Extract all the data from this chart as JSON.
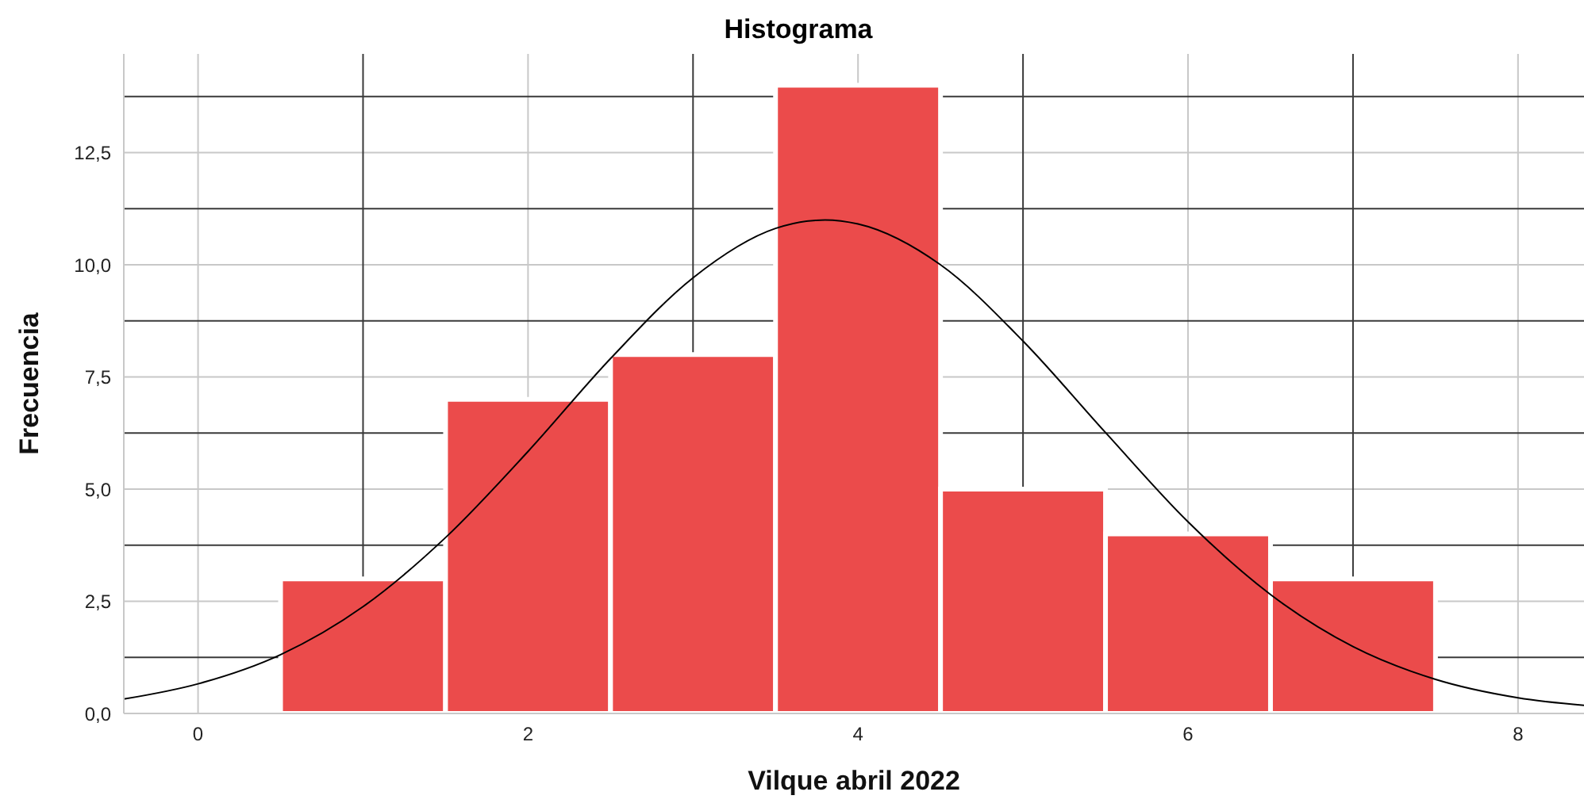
{
  "chart_data": {
    "type": "histogram",
    "title": "Histograma",
    "xlabel": "Vilque abril 2022",
    "ylabel": "Frecuencia",
    "xlim": [
      -0.45,
      8.4
    ],
    "ylim": [
      0,
      14.7
    ],
    "xticks": [
      0,
      {
        "value": 1,
        "label": null
      },
      2,
      {
        "value": 3,
        "label": null
      },
      4,
      {
        "value": 5,
        "label": null
      },
      6,
      {
        "value": 7,
        "label": null
      },
      8
    ],
    "yticks": [
      {
        "value": 0,
        "label": "0,0"
      },
      {
        "value": 1.25,
        "label": null
      },
      {
        "value": 2.5,
        "label": "2,5"
      },
      {
        "value": 3.75,
        "label": null
      },
      {
        "value": 5,
        "label": "5,0"
      },
      {
        "value": 6.25,
        "label": null
      },
      {
        "value": 7.5,
        "label": "7,5"
      },
      {
        "value": 8.75,
        "label": null
      },
      {
        "value": 10,
        "label": "10,0"
      },
      {
        "value": 11.25,
        "label": null
      },
      {
        "value": 12.5,
        "label": "12,5"
      },
      {
        "value": 13.75,
        "label": null
      }
    ],
    "grid": true,
    "series": [
      {
        "color": "#eb4b4b",
        "bins": [
          0.5,
          1.5,
          2.5,
          3.5,
          4.5,
          5.5,
          6.5,
          7.5
        ],
        "values": [
          3,
          7,
          8,
          14,
          5,
          4,
          3
        ]
      },
      {
        "type": "line",
        "color": "#000000",
        "x": [
          -0.45,
          0,
          0.5,
          1,
          1.5,
          2,
          2.5,
          3,
          3.5,
          3.8,
          4,
          4.5,
          5,
          5.5,
          6,
          6.5,
          7,
          7.5,
          8,
          8.4
        ],
        "values": [
          0.32,
          0.66,
          1.31,
          2.38,
          3.92,
          5.84,
          7.91,
          9.71,
          10.81,
          11,
          10.91,
          10,
          8.3,
          6.26,
          4.27,
          2.65,
          1.49,
          0.76,
          0.35,
          0.18
        ]
      }
    ]
  }
}
